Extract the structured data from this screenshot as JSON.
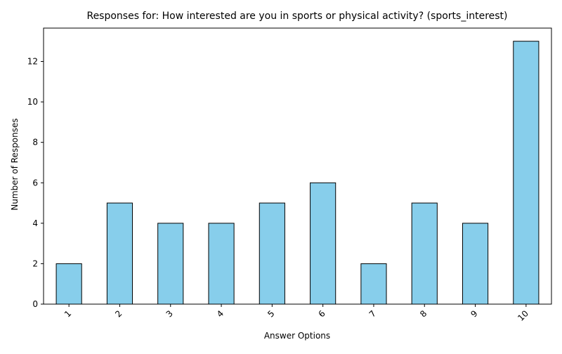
{
  "chart_data": {
    "type": "bar",
    "title": "Responses for: How interested are you in sports or physical activity? (sports_interest)",
    "xlabel": "Answer Options",
    "ylabel": "Number of Responses",
    "categories": [
      "1",
      "2",
      "3",
      "4",
      "5",
      "6",
      "7",
      "8",
      "9",
      "10"
    ],
    "values": [
      2,
      5,
      4,
      4,
      5,
      6,
      2,
      5,
      4,
      13
    ],
    "ylim": [
      0,
      13.65
    ],
    "yticks": [
      0,
      2,
      4,
      6,
      8,
      10,
      12
    ],
    "grid": false,
    "bar_color": "#87CEEB",
    "bar_edge_color": "#000000"
  }
}
